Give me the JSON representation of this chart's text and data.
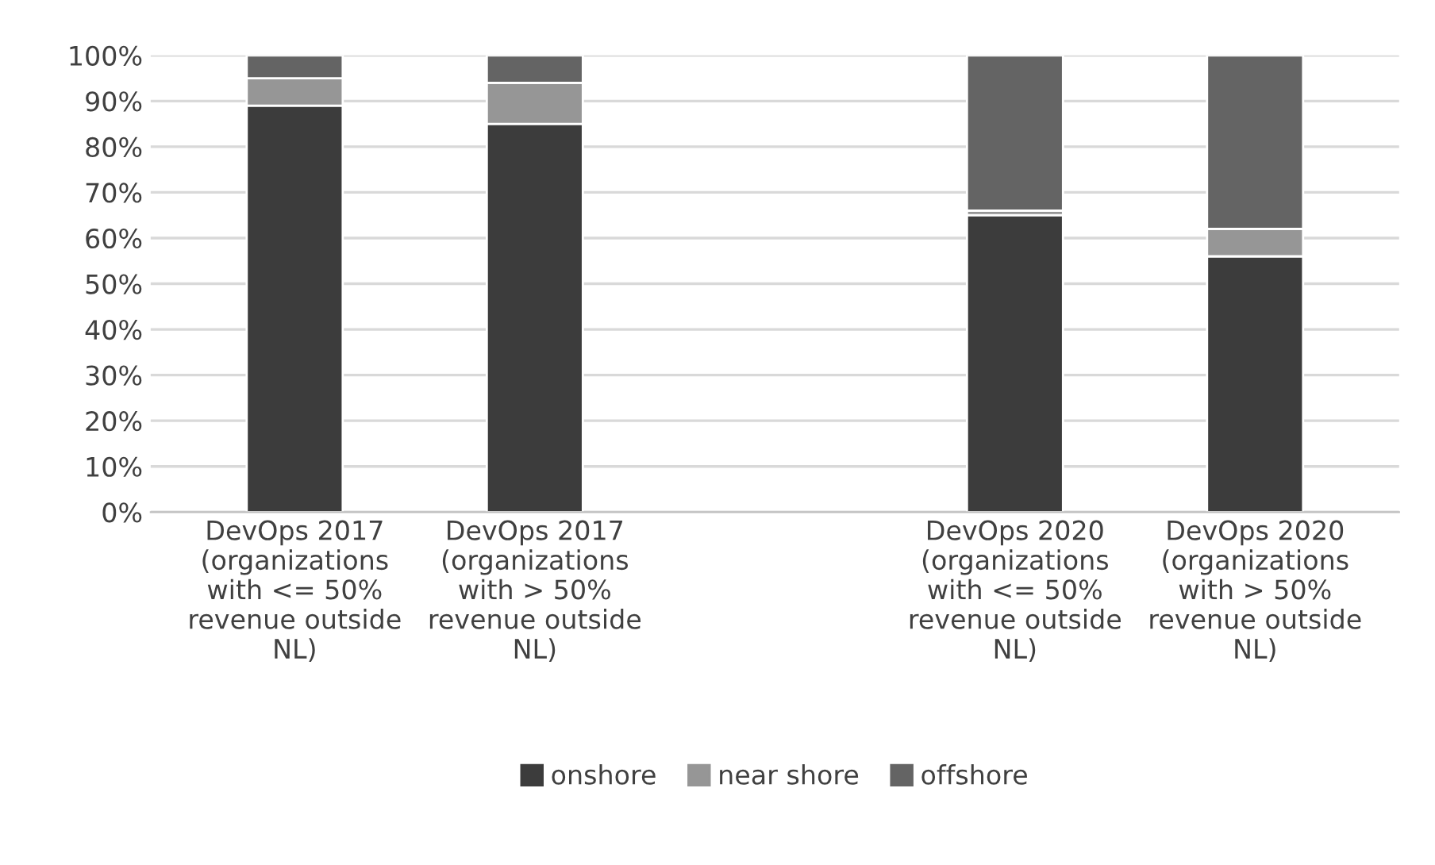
{
  "chart_data": {
    "type": "bar",
    "stacked": true,
    "categories": [
      "DevOps 2017\n(organizations\nwith <= 50%\nrevenue outside\nNL)",
      "DevOps 2017\n(organizations\nwith > 50%\nrevenue outside\nNL)",
      null,
      "DevOps 2020\n(organizations\nwith <= 50%\nrevenue outside\nNL)",
      "DevOps 2020\n(organizations\nwith > 50%\nrevenue outside\nNL)"
    ],
    "series": [
      {
        "name": "onshore",
        "color": "#3c3c3c",
        "values": [
          89,
          85,
          null,
          65,
          56
        ]
      },
      {
        "name": "near shore",
        "color": "#969696",
        "values": [
          6,
          9,
          null,
          1,
          6
        ]
      },
      {
        "name": "offshore",
        "color": "#646464",
        "values": [
          5,
          6,
          null,
          34,
          38
        ]
      }
    ],
    "ylim": [
      0,
      100
    ],
    "yticks": [
      {
        "value": 0,
        "label": "0%"
      },
      {
        "value": 10,
        "label": "10%"
      },
      {
        "value": 20,
        "label": "20%"
      },
      {
        "value": 30,
        "label": "30%"
      },
      {
        "value": 40,
        "label": "40%"
      },
      {
        "value": 50,
        "label": "50%"
      },
      {
        "value": 60,
        "label": "60%"
      },
      {
        "value": 70,
        "label": "70%"
      },
      {
        "value": 80,
        "label": "80%"
      },
      {
        "value": 90,
        "label": "90%"
      },
      {
        "value": 100,
        "label": "100%"
      }
    ],
    "grid": "y",
    "legend": "bottom"
  }
}
